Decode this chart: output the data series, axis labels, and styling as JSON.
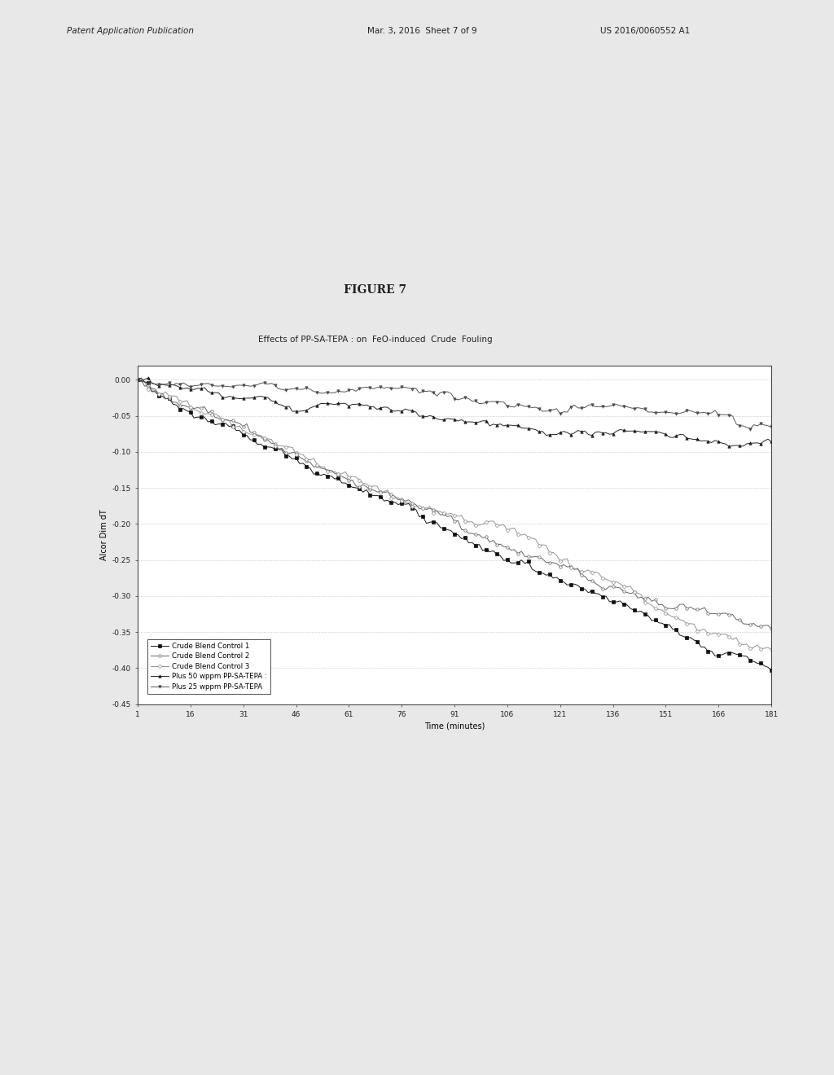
{
  "figure_label": "FIGURE 7",
  "chart_title": "Effects of PP-SA-TEPA : on  FeO-induced  Crude  Fouling",
  "ylabel": "Alcor Dim dT",
  "xlabel": "Time (minutes)",
  "ylim": [
    -0.45,
    0.02
  ],
  "xlim": [
    1,
    181
  ],
  "yticks": [
    0.0,
    -0.05,
    -0.1,
    -0.15,
    -0.2,
    -0.25,
    -0.3,
    -0.35,
    -0.4,
    -0.45
  ],
  "xticks": [
    1,
    16,
    31,
    46,
    61,
    76,
    91,
    106,
    121,
    136,
    151,
    166,
    181
  ],
  "legend_entries": [
    "Crude Blend Control 1",
    "Crude Blend Control 2",
    "Crude Blend Control 3",
    "Plus 50 wppm PP-SA-TEPA :",
    "Plus 25 wppm PP-SA-TEPA"
  ],
  "bg_color": "#e8e8e8",
  "plot_bg_color": "#ffffff",
  "grid_color": "#999999",
  "header_text": "Patent Application Publication    Mar. 3, 2016  Sheet 7 of 9    US 2016/0060552 A1",
  "end_vals": [
    -0.42,
    -0.38,
    -0.35,
    -0.08,
    -0.06
  ],
  "colors": [
    "#000000",
    "#333333",
    "#555555",
    "#111111",
    "#333333"
  ]
}
